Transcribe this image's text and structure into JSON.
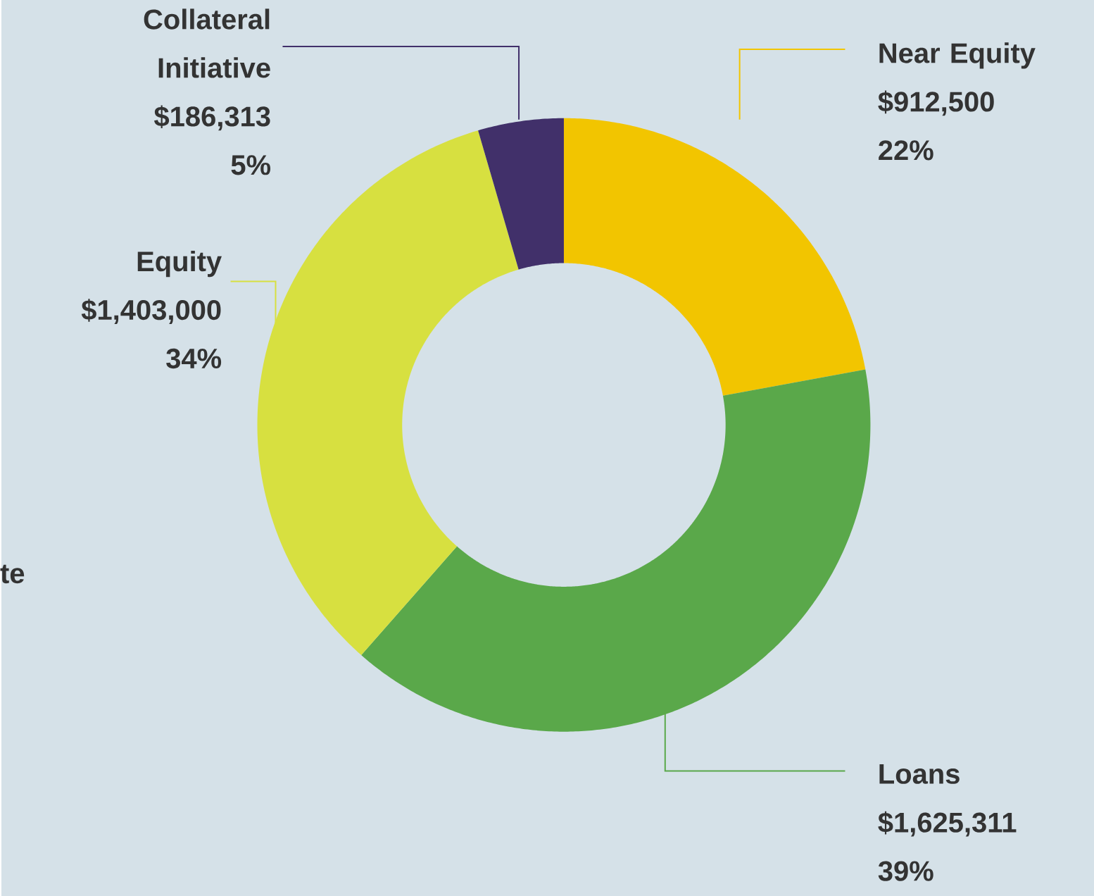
{
  "chart_data": {
    "type": "donut",
    "categories": [
      "Near Equity",
      "Loans",
      "Equity",
      "Collateral Initiative"
    ],
    "values": [
      912500,
      1625311,
      1403000,
      186313
    ],
    "value_labels": [
      "$912,500",
      "$1,625,311",
      "$1,403,000",
      "$186,313"
    ],
    "colors": [
      "#f2c500",
      "#5aa84a",
      "#d7e040",
      "#41306a"
    ],
    "annotations": [
      {
        "text": "22%",
        "x": "Near Equity"
      },
      {
        "text": "39%",
        "x": "Loans"
      },
      {
        "text": "34%",
        "x": "Equity"
      },
      {
        "text": "5%",
        "x": "Collateral Initiative"
      },
      "te"
    ]
  }
}
